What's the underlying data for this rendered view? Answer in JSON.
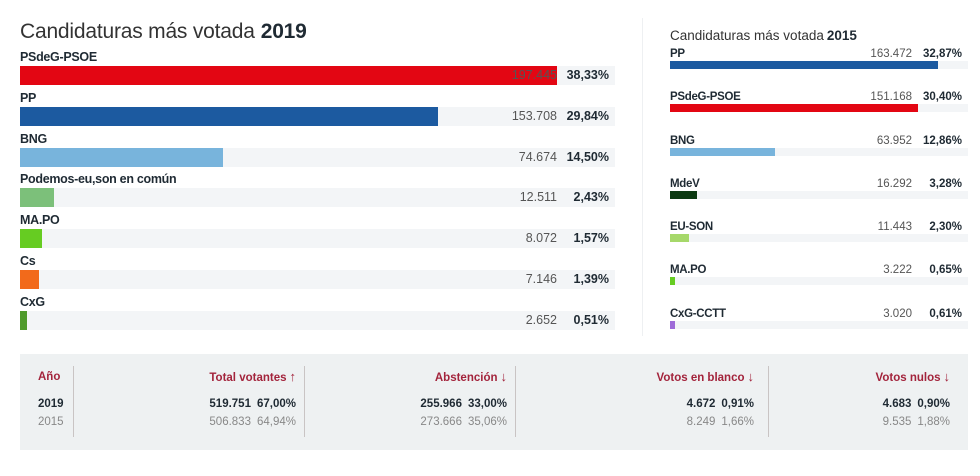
{
  "chart_data": [
    {
      "type": "bar",
      "orientation": "horizontal",
      "title": "Candidaturas más votada",
      "year": "2019",
      "scale_max_percent": 42.5,
      "categories": [
        "PSdeG-PSOE",
        "PP",
        "BNG",
        "Podemos-eu,son en común",
        "MA.PO",
        "Cs",
        "CxG"
      ],
      "series": [
        {
          "name": "Votos",
          "values": [
            197445,
            153708,
            74674,
            12511,
            8072,
            7146,
            2652
          ],
          "labels": [
            "197.445",
            "153.708",
            "74.674",
            "12.511",
            "8.072",
            "7.146",
            "2.652"
          ]
        },
        {
          "name": "Porcentaje",
          "values": [
            38.33,
            29.84,
            14.5,
            2.43,
            1.57,
            1.39,
            0.51
          ],
          "labels": [
            "38,33%",
            "29,84%",
            "14,50%",
            "2,43%",
            "1,57%",
            "1,39%",
            "0,51%"
          ]
        }
      ],
      "colors": [
        "#e30613",
        "#1c5aa0",
        "#78b4dc",
        "#7cc07a",
        "#66cc22",
        "#f26a1b",
        "#4f9a2c"
      ]
    },
    {
      "type": "bar",
      "orientation": "horizontal",
      "title": "Candidaturas más votada",
      "year": "2015",
      "scale_max_percent": 36.5,
      "categories": [
        "PP",
        "PSdeG-PSOE",
        "BNG",
        "MdeV",
        "EU-SON",
        "MA.PO",
        "CxG-CCTT"
      ],
      "series": [
        {
          "name": "Votos",
          "values": [
            163472,
            151168,
            63952,
            16292,
            11443,
            3222,
            3020
          ],
          "labels": [
            "163.472",
            "151.168",
            "63.952",
            "16.292",
            "11.443",
            "3.222",
            "3.020"
          ]
        },
        {
          "name": "Porcentaje",
          "values": [
            32.87,
            30.4,
            12.86,
            3.28,
            2.3,
            0.65,
            0.61
          ],
          "labels": [
            "32,87%",
            "30,40%",
            "12,86%",
            "3,28%",
            "2,30%",
            "0,65%",
            "0,61%"
          ]
        }
      ],
      "colors": [
        "#1c5aa0",
        "#e30613",
        "#78b4dc",
        "#0c3a12",
        "#a6d86a",
        "#66cc22",
        "#9e6bd8"
      ]
    },
    {
      "type": "table",
      "columns": [
        "Año",
        "Total votantes",
        "Abstención",
        "Votos en blanco",
        "Votos nulos"
      ],
      "rows": [
        [
          "2019",
          "519.751 67,00%",
          "255.966 33,00%",
          "4.672 0,91%",
          "4.683 0,90%"
        ],
        [
          "2015",
          "506.833 64,94%",
          "273.666 35,06%",
          "8.249 1,66%",
          "9.535 1,88%"
        ]
      ]
    }
  ],
  "left": {
    "title": "Candidaturas más votada",
    "year": "2019"
  },
  "right": {
    "title": "Candidaturas más votada",
    "year": "2015"
  },
  "stats": {
    "headers": {
      "year": "Año",
      "total": "Total votantes",
      "abstention": "Abstención",
      "blank": "Votos en blanco",
      "null": "Votos nulos"
    },
    "arrows": {
      "total": "↑",
      "abstention": "↓",
      "blank": "↓",
      "null": "↓"
    },
    "rows": [
      {
        "year": "2019",
        "total_votes": "519.751",
        "total_pct": "67,00%",
        "abst_votes": "255.966",
        "abst_pct": "33,00%",
        "blank_votes": "4.672",
        "blank_pct": "0,91%",
        "null_votes": "4.683",
        "null_pct": "0,90%"
      },
      {
        "year": "2015",
        "total_votes": "506.833",
        "total_pct": "64,94%",
        "abst_votes": "273.666",
        "abst_pct": "35,06%",
        "blank_votes": "8.249",
        "blank_pct": "1,66%",
        "null_votes": "9.535",
        "null_pct": "1,88%"
      }
    ],
    "accent_color": "#a3243c"
  }
}
